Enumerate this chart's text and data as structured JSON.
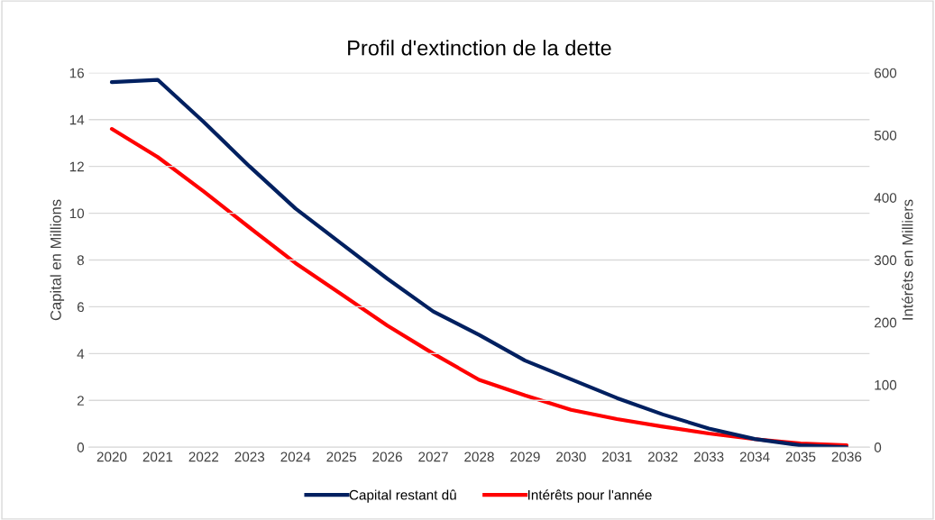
{
  "chart_data": {
    "type": "line",
    "title": "Profil d'extinction de la dette",
    "ylabel": "Capital en Millions",
    "y2label": "Intérêts en Milliers",
    "categories": [
      "2020",
      "2021",
      "2022",
      "2023",
      "2024",
      "2025",
      "2026",
      "2027",
      "2028",
      "2029",
      "2030",
      "2031",
      "2032",
      "2033",
      "2034",
      "2035",
      "2036"
    ],
    "series": [
      {
        "name": "Capital restant dû",
        "color": "#002060",
        "values": [
          15.6,
          15.7,
          13.9,
          12.0,
          10.2,
          8.7,
          7.2,
          5.8,
          4.8,
          3.7,
          2.9,
          2.1,
          1.4,
          0.8,
          0.35,
          0.08,
          0.0
        ]
      },
      {
        "name": "Intérêts pour l'année",
        "color": "#ff0000",
        "axis": "y2",
        "values": [
          510,
          465,
          410,
          352,
          295,
          245,
          195,
          150,
          108,
          83,
          60,
          45,
          33,
          22,
          13,
          6,
          3
        ]
      }
    ],
    "ylim": [
      0,
      16
    ],
    "yticks": [
      0,
      2,
      4,
      6,
      8,
      10,
      12,
      14,
      16
    ],
    "y2lim": [
      0,
      600
    ],
    "y2ticks": [
      0,
      100,
      200,
      300,
      400,
      500,
      600
    ],
    "grid": "y",
    "legend": "bottom",
    "marker": "none",
    "line_style": "solid"
  }
}
